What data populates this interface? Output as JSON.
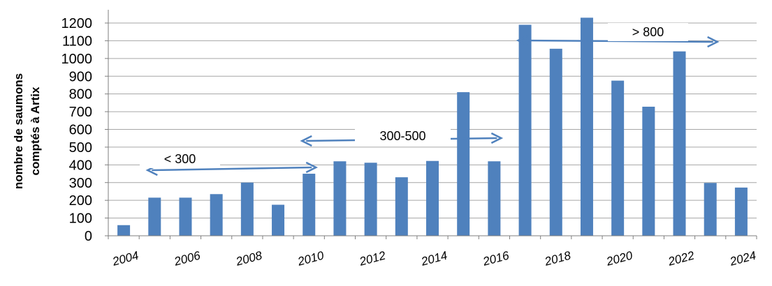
{
  "chart_data": {
    "type": "bar",
    "title": "",
    "xlabel": "",
    "ylabel_lines": [
      "nombre de saumons",
      "comptés à Artix"
    ],
    "ylim": [
      0,
      1200
    ],
    "yticks": [
      "0",
      "100",
      "200",
      "300",
      "400",
      "500",
      "600",
      "700",
      "800",
      "900",
      "1000",
      "1100",
      "1200"
    ],
    "xtick_labels": [
      "2004",
      "2006",
      "2008",
      "2010",
      "2012",
      "2014",
      "2016",
      "2018",
      "2020",
      "2022",
      "2024"
    ],
    "categories": [
      "2004",
      "2005",
      "2006",
      "2007",
      "2008",
      "2009",
      "2010",
      "2011",
      "2012",
      "2013",
      "2014",
      "2015",
      "2016",
      "2017",
      "2018",
      "2019",
      "2020",
      "2021",
      "2022",
      "2023",
      "2024"
    ],
    "values": [
      60,
      215,
      215,
      235,
      300,
      175,
      350,
      420,
      412,
      330,
      422,
      810,
      420,
      1190,
      1055,
      1230,
      875,
      728,
      1040,
      298,
      272
    ],
    "grid": true,
    "colors": {
      "bar": "#4f81bd",
      "arrow": "#4f81bd",
      "grid": "#a6a6a6"
    },
    "annotations": [
      {
        "text": "< 300",
        "from": "2005",
        "to": "2010"
      },
      {
        "text": "300-500",
        "from": "2010",
        "to": "2016"
      },
      {
        "text": "> 800",
        "from": "2017",
        "to": "2023"
      }
    ]
  }
}
